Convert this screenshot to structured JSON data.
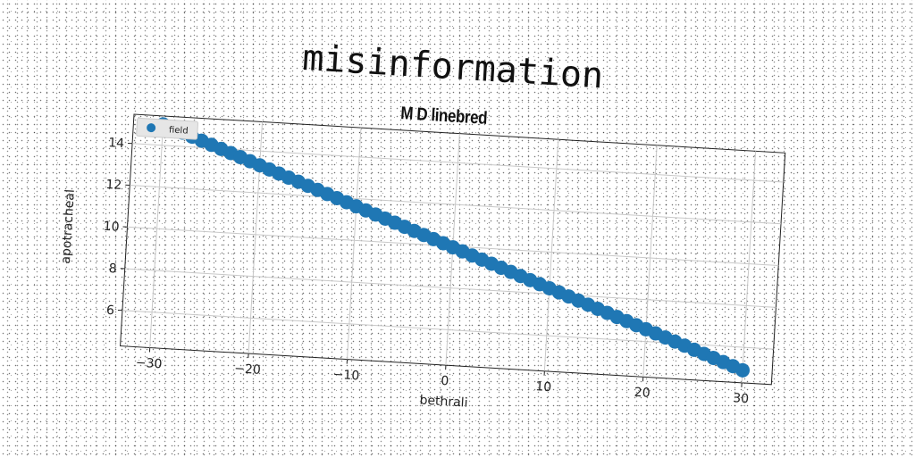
{
  "chart_data": {
    "type": "scatter",
    "title": "misinformation",
    "subtitle": "M D linebred",
    "xlabel": "bethrali",
    "ylabel": "apotracheal",
    "xlim": [
      -33,
      33
    ],
    "ylim": [
      4.3,
      15.4
    ],
    "xticks": [
      -30,
      -20,
      -10,
      0,
      10,
      20,
      30
    ],
    "xtick_labels": [
      "−30",
      "−20",
      "−10",
      "0",
      "10",
      "20",
      "30"
    ],
    "yticks": [
      6,
      8,
      10,
      12,
      14
    ],
    "ytick_labels": [
      "6",
      "8",
      "10",
      "12",
      "14"
    ],
    "grid": true,
    "legend": {
      "position": "top-left",
      "entries": [
        "field"
      ]
    },
    "series": [
      {
        "name": "field",
        "color": "#1f77b4",
        "x_start": -30,
        "x_end": 30,
        "count": 61,
        "y_start": 15.0,
        "y_end": 4.9
      }
    ]
  }
}
